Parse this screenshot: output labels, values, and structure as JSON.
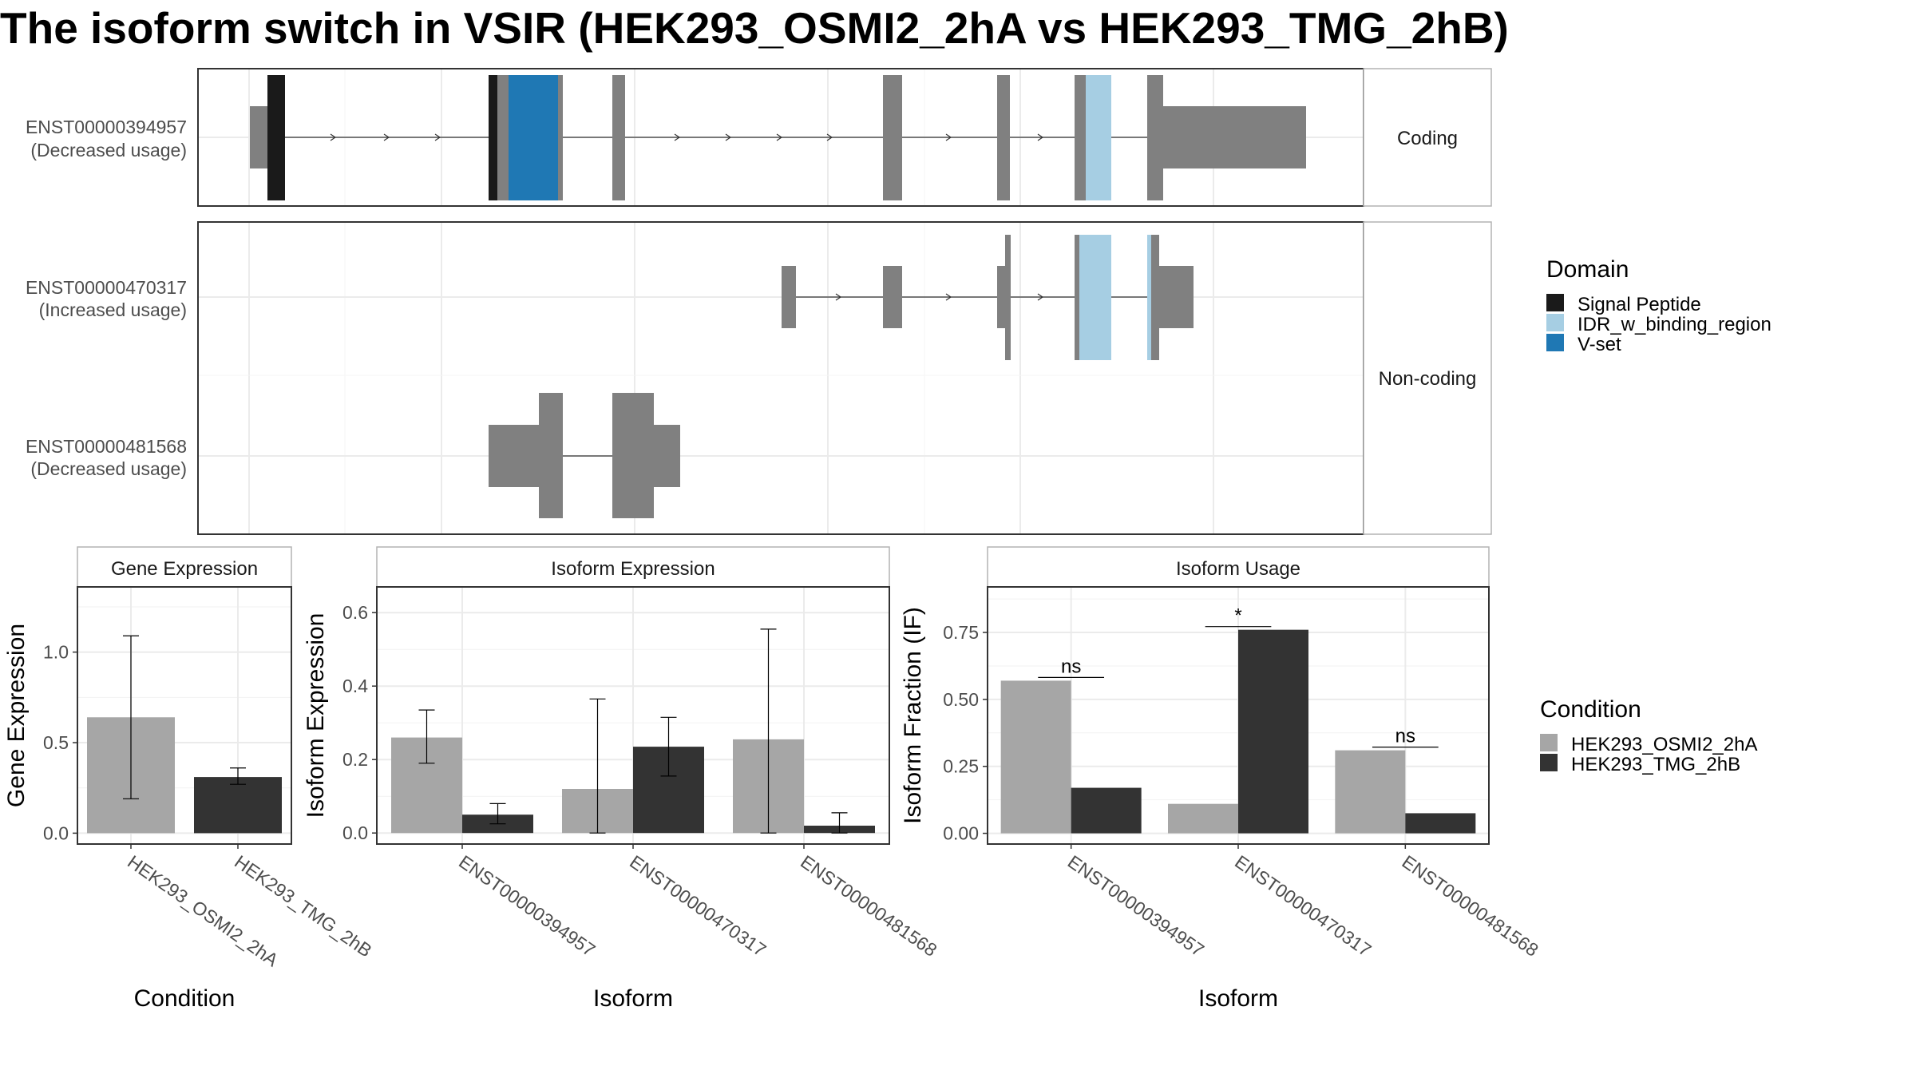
{
  "title": "The isoform switch in VSIR (HEK293_OSMI2_2hA vs HEK293_TMG_2hB)",
  "colors": {
    "exon": "#808080",
    "signal_peptide": "#1a1a1a",
    "idr": "#a6cee3",
    "vset": "#1f78b4",
    "cond_a": "#a6a6a6",
    "cond_b": "#333333",
    "panel_border": "#333333",
    "strip_border": "#b3b3b3",
    "grid": "#ebebeb"
  },
  "transcripts": {
    "coding_strip": "Coding",
    "noncoding_strip": "Non-coding",
    "rows": [
      {
        "id": "ENST00000394957",
        "note": "(Decreased usage)",
        "group": "coding"
      },
      {
        "id": "ENST00000470317",
        "note": "(Increased usage)",
        "group": "noncoding"
      },
      {
        "id": "ENST00000481568",
        "note": "(Decreased usage)",
        "group": "noncoding"
      }
    ]
  },
  "legend_domain": {
    "title": "Domain",
    "items": [
      {
        "label": "Signal Peptide",
        "color": "#1a1a1a"
      },
      {
        "label": "IDR_w_binding_region",
        "color": "#a6cee3"
      },
      {
        "label": "V-set",
        "color": "#1f78b4"
      }
    ]
  },
  "legend_condition": {
    "title": "Condition",
    "items": [
      {
        "label": "HEK293_OSMI2_2hA",
        "color": "#a6a6a6"
      },
      {
        "label": "HEK293_TMG_2hB",
        "color": "#333333"
      }
    ]
  },
  "chart_data": [
    {
      "type": "bar",
      "title": "Gene Expression",
      "xlabel": "Condition",
      "ylabel": "Gene Expression",
      "categories": [
        "HEK293_OSMI2_2hA",
        "HEK293_TMG_2hB"
      ],
      "ylim": [
        -0.06,
        1.36
      ],
      "yticks": [
        0.0,
        0.5,
        1.0
      ],
      "ytick_labels": [
        "0.0",
        "0.5",
        "1.0"
      ],
      "grid": true,
      "bars": [
        {
          "value": 0.64,
          "lo": 0.19,
          "hi": 1.09
        },
        {
          "value": 0.31,
          "lo": 0.27,
          "hi": 0.36
        }
      ]
    },
    {
      "type": "bar",
      "title": "Isoform Expression",
      "xlabel": "Isoform",
      "ylabel": "Isoform Expression",
      "categories": [
        "ENST00000394957",
        "ENST00000470317",
        "ENST00000481568"
      ],
      "series": [
        {
          "name": "HEK293_OSMI2_2hA",
          "values": [
            0.26,
            0.12,
            0.255
          ],
          "lo": [
            0.19,
            0.0,
            0.0
          ],
          "hi": [
            0.335,
            0.365,
            0.555
          ]
        },
        {
          "name": "HEK293_TMG_2hB",
          "values": [
            0.05,
            0.235,
            0.02
          ],
          "lo": [
            0.025,
            0.155,
            0.0
          ],
          "hi": [
            0.08,
            0.315,
            0.055
          ]
        }
      ],
      "ylim": [
        -0.03,
        0.67
      ],
      "yticks": [
        0.0,
        0.2,
        0.4,
        0.6
      ],
      "ytick_labels": [
        "0.0",
        "0.2",
        "0.4",
        "0.6"
      ],
      "grid": true
    },
    {
      "type": "bar",
      "title": "Isoform Usage",
      "xlabel": "Isoform",
      "ylabel": "Isoform Fraction (IF)",
      "categories": [
        "ENST00000394957",
        "ENST00000470317",
        "ENST00000481568"
      ],
      "series": [
        {
          "name": "HEK293_OSMI2_2hA",
          "values": [
            0.57,
            0.11,
            0.31
          ]
        },
        {
          "name": "HEK293_TMG_2hB",
          "values": [
            0.17,
            0.76,
            0.075
          ]
        }
      ],
      "significance": [
        "ns",
        "*",
        "ns"
      ],
      "ylim": [
        -0.04,
        0.92
      ],
      "yticks": [
        0.0,
        0.25,
        0.5,
        0.75
      ],
      "ytick_labels": [
        "0.00",
        "0.25",
        "0.50",
        "0.75"
      ],
      "grid": true
    }
  ]
}
